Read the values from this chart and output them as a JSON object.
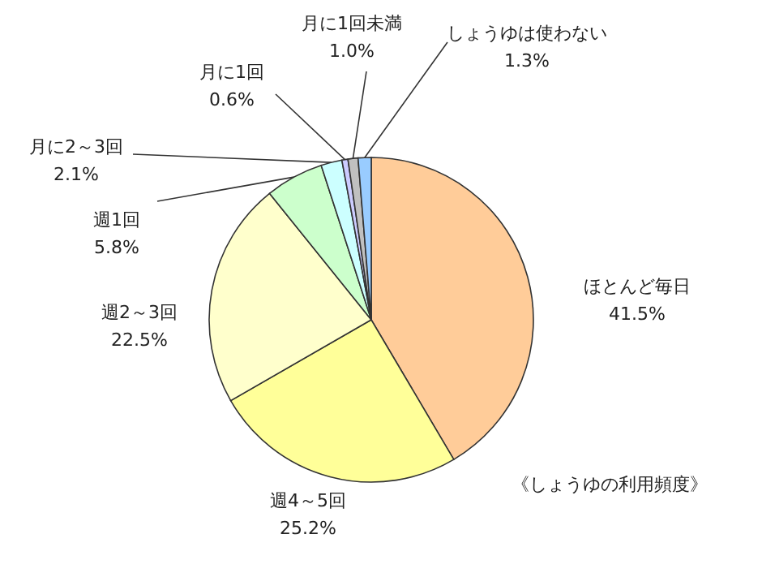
{
  "chart_data": {
    "type": "pie",
    "categories": [
      "ほとんど毎日",
      "週4～5回",
      "週2～3回",
      "週1回",
      "月に2～3回",
      "月に1回",
      "月に1回未満",
      "しょうゆは使わない"
    ],
    "values": [
      41.5,
      25.2,
      22.5,
      5.8,
      2.1,
      0.6,
      1.0,
      1.3
    ],
    "value_labels": [
      "41.5%",
      "25.2%",
      "22.5%",
      "5.8%",
      "2.1%",
      "0.6%",
      "1.0%",
      "1.3%"
    ],
    "colors": [
      "#ffcc99",
      "#ffff99",
      "#ffffcc",
      "#ccffcc",
      "#ccffff",
      "#ccccff",
      "#c0c0c0",
      "#99ccff"
    ],
    "annotations": [
      "《しょうゆの利用頻度》"
    ]
  }
}
